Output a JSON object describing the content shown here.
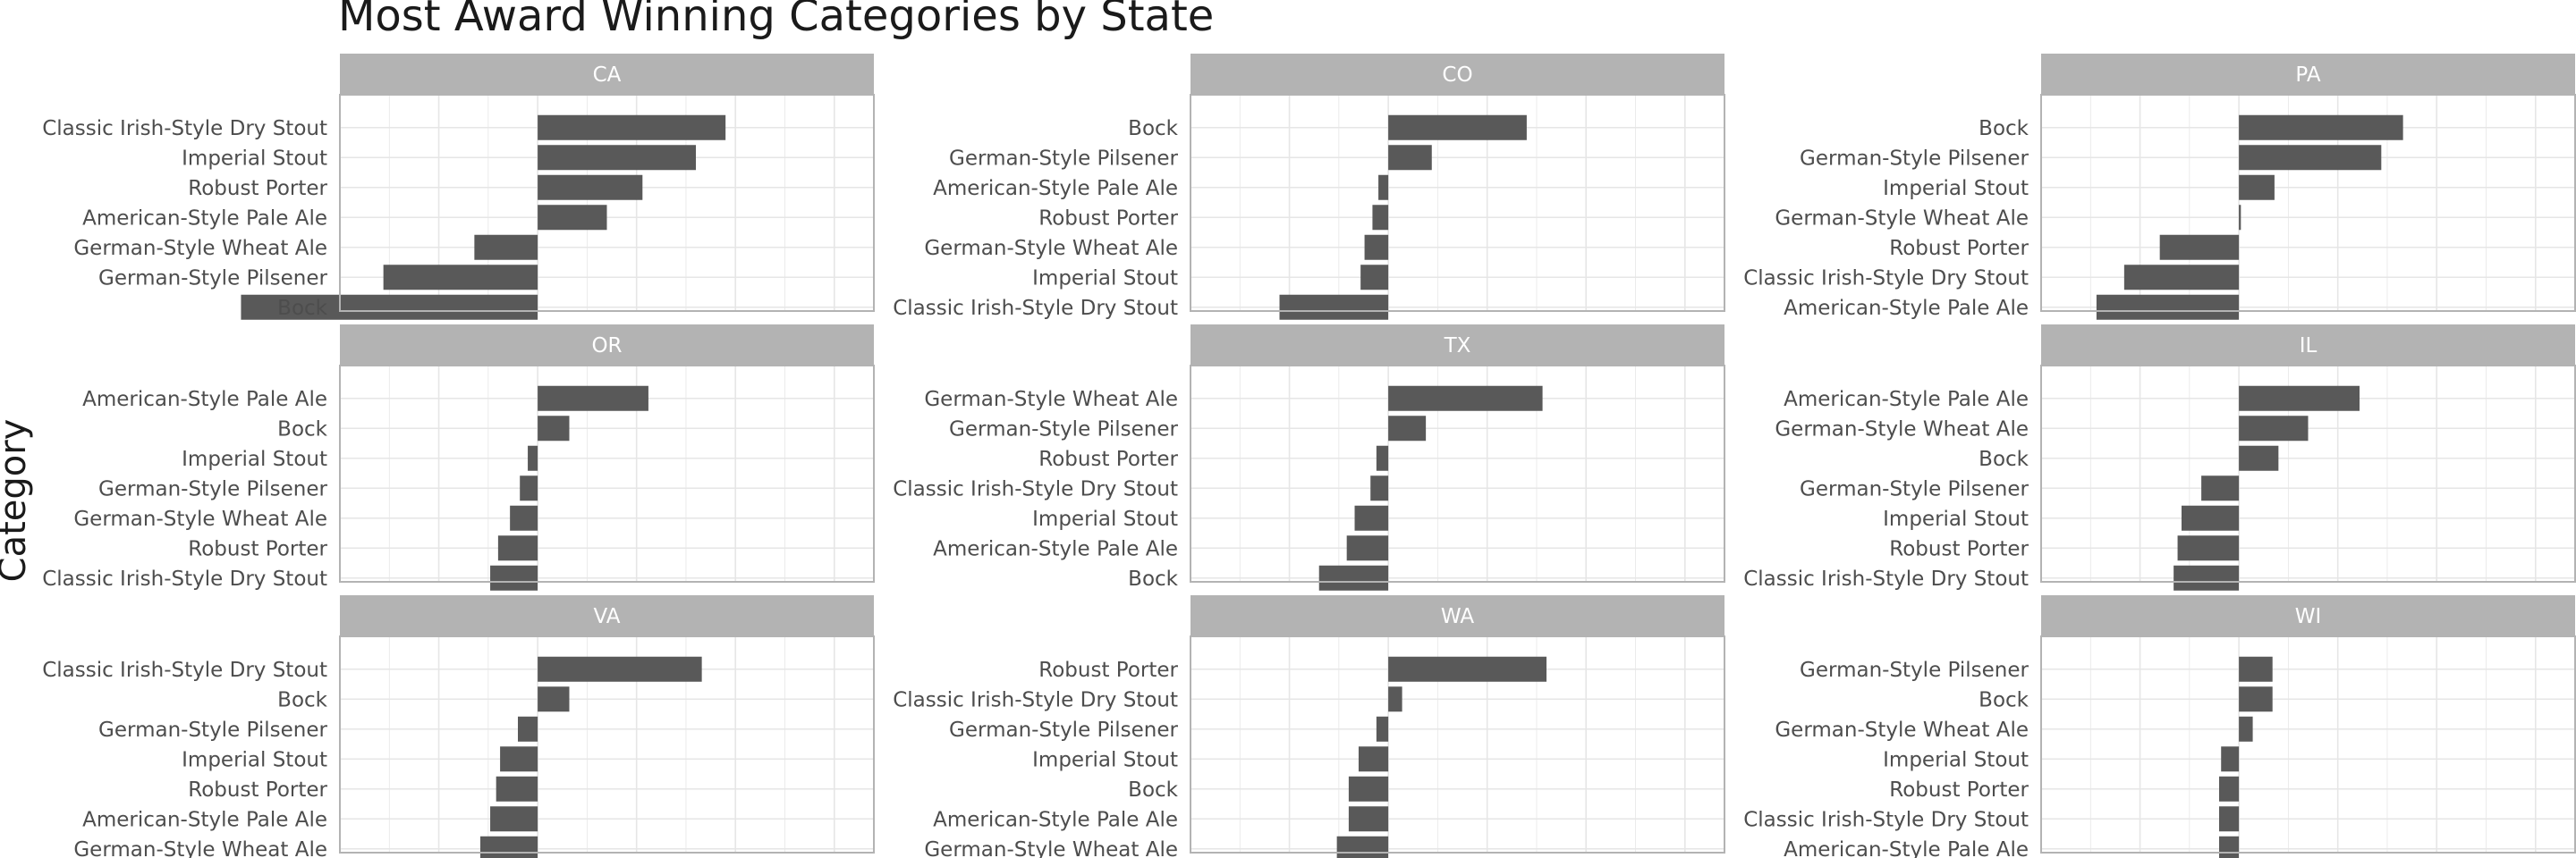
{
  "chart_data": {
    "type": "bar",
    "orientation": "horizontal",
    "layout": "facet_wrap 3x3",
    "title": "Most Award Winning Categories by State",
    "xlabel": "",
    "ylabel": "Category",
    "x_tick_labels_visible": false,
    "grid": true,
    "bar_color": "#595959",
    "strip_color": "#b3b3b3",
    "panel_border_color": "#b3b3b3",
    "grid_color": "#e6e6e6",
    "xlim": [
      -1,
      1.7
    ],
    "facets": [
      {
        "name": "CA",
        "categories": [
          "Classic Irish-Style Dry Stout",
          "Imperial Stout",
          "Robust Porter",
          "American-Style Pale Ale",
          "German-Style Wheat Ale",
          "German-Style Pilsener",
          "Bock"
        ],
        "values": [
          0.95,
          0.8,
          0.53,
          0.35,
          -0.32,
          -0.78,
          -1.5
        ]
      },
      {
        "name": "CO",
        "categories": [
          "Bock",
          "German-Style Pilsener",
          "American-Style Pale Ale",
          "Robust Porter",
          "German-Style Wheat Ale",
          "Imperial Stout",
          "Classic Irish-Style Dry Stout"
        ],
        "values": [
          0.7,
          0.22,
          -0.05,
          -0.08,
          -0.12,
          -0.14,
          -0.55
        ]
      },
      {
        "name": "PA",
        "categories": [
          "Bock",
          "German-Style Pilsener",
          "Imperial Stout",
          "German-Style Wheat Ale",
          "Robust Porter",
          "Classic Irish-Style Dry Stout",
          "American-Style Pale Ale"
        ],
        "values": [
          0.83,
          0.72,
          0.18,
          0.01,
          -0.4,
          -0.58,
          -0.72
        ]
      },
      {
        "name": "OR",
        "categories": [
          "American-Style Pale Ale",
          "Bock",
          "Imperial Stout",
          "German-Style Pilsener",
          "German-Style Wheat Ale",
          "Robust Porter",
          "Classic Irish-Style Dry Stout"
        ],
        "values": [
          0.56,
          0.16,
          -0.05,
          -0.09,
          -0.14,
          -0.2,
          -0.24
        ]
      },
      {
        "name": "TX",
        "categories": [
          "German-Style Wheat Ale",
          "German-Style Pilsener",
          "Robust Porter",
          "Classic Irish-Style Dry Stout",
          "Imperial Stout",
          "American-Style Pale Ale",
          "Bock"
        ],
        "values": [
          0.78,
          0.19,
          -0.06,
          -0.09,
          -0.17,
          -0.21,
          -0.35
        ]
      },
      {
        "name": "IL",
        "categories": [
          "American-Style Pale Ale",
          "German-Style Wheat Ale",
          "Bock",
          "German-Style Pilsener",
          "Imperial Stout",
          "Robust Porter",
          "Classic Irish-Style Dry Stout"
        ],
        "values": [
          0.61,
          0.35,
          0.2,
          -0.19,
          -0.29,
          -0.31,
          -0.33
        ]
      },
      {
        "name": "VA",
        "categories": [
          "Classic Irish-Style Dry Stout",
          "Bock",
          "German-Style Pilsener",
          "Imperial Stout",
          "Robust Porter",
          "American-Style Pale Ale",
          "German-Style Wheat Ale"
        ],
        "values": [
          0.83,
          0.16,
          -0.1,
          -0.19,
          -0.21,
          -0.24,
          -0.29
        ]
      },
      {
        "name": "WA",
        "categories": [
          "Robust Porter",
          "Classic Irish-Style Dry Stout",
          "German-Style Pilsener",
          "Imperial Stout",
          "Bock",
          "American-Style Pale Ale",
          "German-Style Wheat Ale"
        ],
        "values": [
          0.8,
          0.07,
          -0.06,
          -0.15,
          -0.2,
          -0.2,
          -0.26
        ]
      },
      {
        "name": "WI",
        "categories": [
          "German-Style Pilsener",
          "Bock",
          "German-Style Wheat Ale",
          "Imperial Stout",
          "Robust Porter",
          "Classic Irish-Style Dry Stout",
          "American-Style Pale Ale"
        ],
        "values": [
          0.17,
          0.17,
          0.07,
          -0.09,
          -0.1,
          -0.1,
          -0.1
        ]
      }
    ]
  }
}
